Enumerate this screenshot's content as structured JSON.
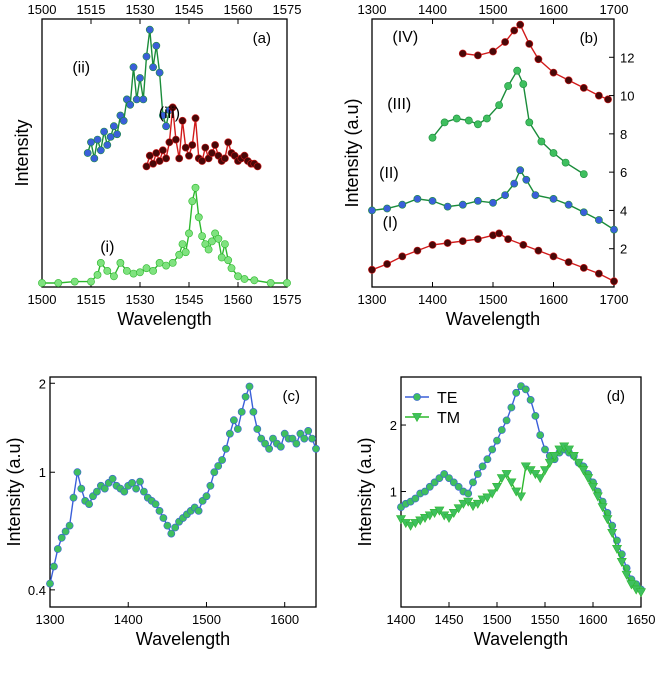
{
  "chart_data": [
    {
      "type": "line",
      "panel_label": "(a)",
      "xlabel": "Wavelength",
      "ylabel": "Intensity",
      "xlim": [
        1500,
        1575
      ],
      "ylim": [
        0,
        10
      ],
      "x_ticks": [
        "1500",
        "1515",
        "1530",
        "1545",
        "1560",
        "1575"
      ],
      "x_ticks_top": [
        "1500",
        "1515",
        "1530",
        "1545",
        "1560",
        "1575"
      ],
      "y_ticks": [],
      "grid": false,
      "series": [
        {
          "name": "(i)",
          "line_color": "#2db82d",
          "marker_color": "#7fe27f",
          "x": [
            1500,
            1505,
            1510,
            1515,
            1517,
            1518,
            1520,
            1522,
            1524,
            1526,
            1528,
            1530,
            1532,
            1534,
            1536,
            1538,
            1540,
            1542,
            1543,
            1544,
            1545,
            1546,
            1547,
            1548,
            1549,
            1550,
            1551,
            1552,
            1553,
            1554,
            1555,
            1556,
            1557,
            1558,
            1560,
            1562,
            1565,
            1570,
            1575
          ],
          "y": [
            0.15,
            0.15,
            0.2,
            0.2,
            0.45,
            0.9,
            0.6,
            0.4,
            0.9,
            0.6,
            0.5,
            0.55,
            0.7,
            0.6,
            0.9,
            0.8,
            0.9,
            1.2,
            1.6,
            1.3,
            2.0,
            3.2,
            3.7,
            2.6,
            1.9,
            1.6,
            1.4,
            1.7,
            2.0,
            1.8,
            1.1,
            1.6,
            1.0,
            0.7,
            0.4,
            0.3,
            0.25,
            0.15,
            0.15
          ]
        },
        {
          "name": "(ii)",
          "line_color": "#1a8c3a",
          "marker_color": "#3a5fd9",
          "x": [
            1514,
            1515,
            1516,
            1517,
            1518,
            1519,
            1520,
            1521,
            1522,
            1523,
            1524,
            1525,
            1526,
            1527,
            1528,
            1529,
            1530,
            1531,
            1532,
            1533,
            1534,
            1535,
            1536,
            1537,
            1538,
            1539
          ],
          "y": [
            5.0,
            5.4,
            4.8,
            5.5,
            5.1,
            5.8,
            5.3,
            5.6,
            6.0,
            5.7,
            6.4,
            6.2,
            7.0,
            6.8,
            8.2,
            7.0,
            7.8,
            7.0,
            8.6,
            9.6,
            8.2,
            9.0,
            8.0,
            6.4,
            6.0,
            6.6
          ]
        },
        {
          "name": "(iii)",
          "line_color": "#d11a1a",
          "marker_color": "#4a0808",
          "x": [
            1532,
            1533,
            1534,
            1535,
            1536,
            1537,
            1538,
            1539,
            1540,
            1541,
            1542,
            1543,
            1544,
            1545,
            1546,
            1547,
            1548,
            1549,
            1550,
            1551,
            1552,
            1553,
            1554,
            1555,
            1556,
            1557,
            1558,
            1559,
            1560,
            1561,
            1562,
            1563,
            1564,
            1565,
            1566
          ],
          "y": [
            4.5,
            4.9,
            4.6,
            5.0,
            4.7,
            5.1,
            4.8,
            5.4,
            6.7,
            5.5,
            4.8,
            6.2,
            5.2,
            4.9,
            5.3,
            6.3,
            4.8,
            4.7,
            5.2,
            4.8,
            5.0,
            5.3,
            4.9,
            4.7,
            4.8,
            5.4,
            5.0,
            4.9,
            4.7,
            4.8,
            4.9,
            4.7,
            4.6,
            4.6,
            4.5
          ]
        }
      ],
      "annotations": [
        "(i)",
        "(ii)",
        "(iii)"
      ]
    },
    {
      "type": "line",
      "panel_label": "(b)",
      "xlabel": "Wavelength",
      "ylabel": "Intensity (a.u)",
      "xlim": [
        1300,
        1700
      ],
      "ylim": [
        0,
        14
      ],
      "x_ticks": [
        "1300",
        "1400",
        "1500",
        "1600",
        "1700"
      ],
      "x_ticks_top": [
        "1300",
        "1400",
        "1500",
        "1600",
        "1700"
      ],
      "y_ticks_right": [
        "2",
        "4",
        "6",
        "8",
        "10",
        "12"
      ],
      "grid": false,
      "series": [
        {
          "name": "(I)",
          "line_color": "#d11a1a",
          "marker_color": "#4a0808",
          "x": [
            1300,
            1325,
            1350,
            1375,
            1400,
            1425,
            1450,
            1475,
            1500,
            1510,
            1525,
            1550,
            1575,
            1600,
            1625,
            1650,
            1675,
            1700
          ],
          "y": [
            0.9,
            1.2,
            1.6,
            1.9,
            2.2,
            2.3,
            2.4,
            2.5,
            2.7,
            2.8,
            2.5,
            2.2,
            1.9,
            1.6,
            1.3,
            1.0,
            0.7,
            0.3
          ]
        },
        {
          "name": "(II)",
          "line_color": "#1a8c3a",
          "marker_color": "#3a5fd9",
          "x": [
            1300,
            1325,
            1350,
            1375,
            1400,
            1425,
            1450,
            1475,
            1500,
            1520,
            1535,
            1545,
            1555,
            1570,
            1600,
            1625,
            1650,
            1675,
            1700
          ],
          "y": [
            4.0,
            4.1,
            4.3,
            4.6,
            4.5,
            4.2,
            4.3,
            4.5,
            4.4,
            4.8,
            5.4,
            6.1,
            5.6,
            4.8,
            4.6,
            4.3,
            3.9,
            3.5,
            3.0
          ]
        },
        {
          "name": "(III)",
          "line_color": "#1a8c3a",
          "marker_color": "#3fbf5f",
          "x": [
            1400,
            1420,
            1440,
            1460,
            1475,
            1490,
            1510,
            1525,
            1540,
            1550,
            1560,
            1580,
            1600,
            1620,
            1650
          ],
          "y": [
            7.8,
            8.6,
            8.8,
            8.7,
            8.5,
            8.8,
            9.5,
            10.5,
            11.3,
            10.6,
            8.6,
            7.6,
            7.0,
            6.5,
            5.9
          ]
        },
        {
          "name": "(IV)",
          "line_color": "#d11a1a",
          "marker_color": "#4a0808",
          "x": [
            1450,
            1475,
            1500,
            1520,
            1535,
            1545,
            1560,
            1575,
            1600,
            1625,
            1650,
            1675,
            1690
          ],
          "y": [
            12.2,
            12.1,
            12.3,
            12.8,
            13.4,
            13.7,
            12.7,
            11.9,
            11.2,
            10.8,
            10.4,
            10.0,
            9.8
          ]
        }
      ],
      "annotations": [
        "(I)",
        "(II)",
        "(III)",
        "(IV)"
      ]
    },
    {
      "type": "line",
      "panel_label": "(c)",
      "xlabel": "Wavelength",
      "ylabel": "Intensity (a.u)",
      "xlim": [
        1300,
        1640
      ],
      "ylim": [
        0.35,
        2.1
      ],
      "y_scale": "log",
      "x_ticks": [
        "1300",
        "1400",
        "1500",
        "1600"
      ],
      "y_ticks": [
        "0.4",
        "1",
        "2"
      ],
      "grid": false,
      "series": [
        {
          "name": "",
          "line_color": "#3a5fd9",
          "marker_color": "#3fbf5f",
          "x": [
            1300,
            1305,
            1310,
            1315,
            1320,
            1325,
            1330,
            1335,
            1340,
            1345,
            1350,
            1355,
            1360,
            1365,
            1370,
            1375,
            1380,
            1385,
            1390,
            1395,
            1400,
            1405,
            1410,
            1415,
            1420,
            1425,
            1430,
            1435,
            1440,
            1445,
            1450,
            1455,
            1460,
            1465,
            1470,
            1475,
            1480,
            1485,
            1490,
            1495,
            1500,
            1505,
            1510,
            1515,
            1520,
            1525,
            1530,
            1535,
            1540,
            1545,
            1550,
            1555,
            1560,
            1565,
            1570,
            1575,
            1580,
            1585,
            1590,
            1595,
            1600,
            1605,
            1610,
            1615,
            1620,
            1625,
            1630,
            1635,
            1640
          ],
          "y": [
            0.42,
            0.48,
            0.55,
            0.6,
            0.63,
            0.66,
            0.82,
            1.0,
            0.88,
            0.8,
            0.78,
            0.83,
            0.86,
            0.9,
            0.88,
            0.92,
            0.95,
            0.9,
            0.88,
            0.86,
            0.9,
            0.92,
            0.88,
            0.93,
            0.86,
            0.82,
            0.8,
            0.78,
            0.74,
            0.7,
            0.66,
            0.62,
            0.65,
            0.68,
            0.7,
            0.72,
            0.74,
            0.76,
            0.74,
            0.8,
            0.83,
            0.9,
            1.0,
            1.05,
            1.1,
            1.2,
            1.35,
            1.5,
            1.4,
            1.6,
            1.8,
            1.95,
            1.6,
            1.4,
            1.3,
            1.25,
            1.2,
            1.3,
            1.25,
            1.22,
            1.35,
            1.3,
            1.3,
            1.25,
            1.35,
            1.3,
            1.38,
            1.3,
            1.2
          ]
        }
      ]
    },
    {
      "type": "line",
      "panel_label": "(d)",
      "xlabel": "Wavelength",
      "ylabel": "Intensity (a.u)",
      "xlim": [
        1400,
        1650
      ],
      "ylim": [
        0.3,
        3.3
      ],
      "y_scale": "log",
      "x_ticks": [
        "1400",
        "1450",
        "1500",
        "1550",
        "1600",
        "1650"
      ],
      "y_ticks": [
        "1",
        "2"
      ],
      "legend": "top-left",
      "grid": false,
      "series": [
        {
          "name": "TE",
          "line_color": "#3a5fd9",
          "marker_color": "#3fbf5f",
          "marker": "circle",
          "x": [
            1400,
            1405,
            1410,
            1415,
            1420,
            1425,
            1430,
            1435,
            1440,
            1445,
            1450,
            1455,
            1460,
            1465,
            1470,
            1475,
            1480,
            1485,
            1490,
            1495,
            1500,
            1505,
            1510,
            1515,
            1520,
            1525,
            1530,
            1535,
            1540,
            1545,
            1550,
            1555,
            1560,
            1565,
            1570,
            1575,
            1580,
            1585,
            1590,
            1595,
            1600,
            1605,
            1610,
            1615,
            1620,
            1625,
            1630,
            1635,
            1640,
            1645,
            1650
          ],
          "y": [
            0.85,
            0.88,
            0.9,
            0.93,
            0.98,
            1.0,
            1.05,
            1.1,
            1.15,
            1.2,
            1.15,
            1.1,
            1.05,
            1.0,
            0.98,
            1.1,
            1.2,
            1.3,
            1.4,
            1.55,
            1.7,
            1.9,
            2.1,
            2.4,
            2.8,
            3.0,
            2.9,
            2.6,
            2.2,
            1.8,
            1.55,
            1.45,
            1.4,
            1.5,
            1.55,
            1.5,
            1.45,
            1.35,
            1.3,
            1.2,
            1.1,
            1.0,
            0.9,
            0.8,
            0.7,
            0.6,
            0.52,
            0.45,
            0.4,
            0.38,
            0.36
          ]
        },
        {
          "name": "TM",
          "line_color": "#2db82d",
          "marker_color": "#3fbf5f",
          "marker": "triangle",
          "x": [
            1400,
            1405,
            1410,
            1415,
            1420,
            1425,
            1430,
            1435,
            1440,
            1445,
            1450,
            1455,
            1460,
            1465,
            1470,
            1475,
            1480,
            1485,
            1490,
            1495,
            1500,
            1505,
            1510,
            1515,
            1520,
            1525,
            1530,
            1535,
            1540,
            1545,
            1550,
            1555,
            1560,
            1565,
            1570,
            1575,
            1580,
            1585,
            1590,
            1595,
            1600,
            1605,
            1610,
            1615,
            1620,
            1625,
            1630,
            1635,
            1640,
            1645,
            1650
          ],
          "y": [
            0.75,
            0.72,
            0.7,
            0.72,
            0.74,
            0.76,
            0.78,
            0.8,
            0.82,
            0.78,
            0.76,
            0.8,
            0.84,
            0.88,
            0.9,
            0.86,
            0.88,
            0.92,
            0.94,
            0.98,
            1.05,
            1.15,
            1.2,
            1.1,
            1.0,
            0.95,
            1.3,
            1.25,
            1.2,
            1.15,
            1.25,
            1.35,
            1.45,
            1.55,
            1.6,
            1.55,
            1.45,
            1.35,
            1.25,
            1.15,
            1.05,
            0.95,
            0.85,
            0.75,
            0.65,
            0.55,
            0.48,
            0.42,
            0.38,
            0.36,
            0.35
          ]
        }
      ]
    }
  ]
}
